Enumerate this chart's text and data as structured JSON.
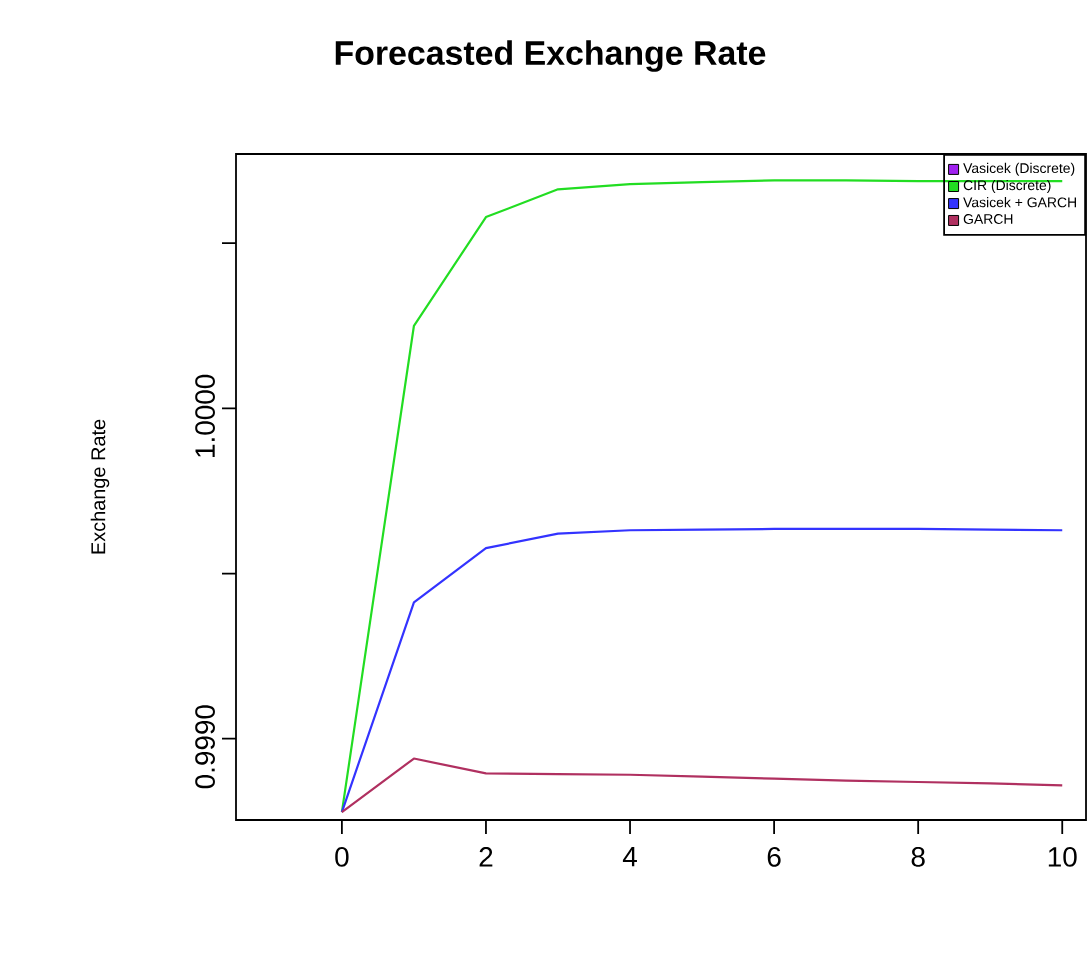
{
  "chart_data": {
    "type": "line",
    "title": "Forecasted Exchange Rate",
    "ylabel": "Exchange Rate",
    "x": [
      0,
      1,
      2,
      3,
      4,
      5,
      6,
      7,
      8,
      9,
      10
    ],
    "series": [
      {
        "name": "Vasicek (Discrete)",
        "color": "#a020f0",
        "values": [
          null,
          null,
          null,
          null,
          null,
          null,
          null,
          null,
          null,
          null,
          null
        ]
      },
      {
        "name": "CIR (Discrete)",
        "color": "#22dd22",
        "values": [
          0.998778,
          1.00025,
          1.000579,
          1.000663,
          1.000679,
          1.000685,
          1.00069,
          1.00069,
          1.000688,
          1.000688,
          1.000688
        ]
      },
      {
        "name": "Vasicek + GARCH",
        "color": "#3333ff",
        "values": [
          0.998778,
          0.999413,
          0.999577,
          0.999621,
          0.999631,
          0.999633,
          0.999635,
          0.999635,
          0.999635,
          0.999633,
          0.999631
        ]
      },
      {
        "name": "GARCH",
        "color": "#b03060",
        "values": [
          0.998778,
          0.99894,
          0.998895,
          0.998893,
          0.998891,
          0.998885,
          0.998879,
          0.998873,
          0.998869,
          0.998865,
          0.998859
        ]
      }
    ],
    "xlim": [
      -1.47,
      10.33
    ],
    "ylim": [
      0.998754,
      1.00077
    ],
    "xticks": [
      0,
      2,
      4,
      6,
      8,
      10
    ],
    "yticks": [
      {
        "value": 0.999,
        "label": "0.9990"
      },
      {
        "value": 0.9995,
        "label": null
      },
      {
        "value": 1.0,
        "label": "1.0000"
      },
      {
        "value": 1.0005,
        "label": null
      }
    ],
    "legend": "top right",
    "grid": false,
    "marker": "none",
    "line_style": "solid"
  }
}
